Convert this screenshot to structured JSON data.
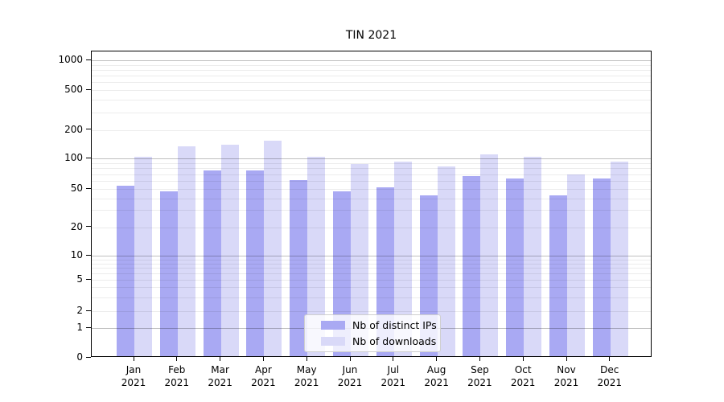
{
  "title": "TIN 2021",
  "chart_data": {
    "type": "bar",
    "title": "TIN 2021",
    "categories": [
      "Jan 2021",
      "Feb 2021",
      "Mar 2021",
      "Apr 2021",
      "May 2021",
      "Jun 2021",
      "Jul 2021",
      "Aug 2021",
      "Sep 2021",
      "Oct 2021",
      "Nov 2021",
      "Dec 2021"
    ],
    "series": [
      {
        "name": "Nb of distinct IPs",
        "color": "#a9a9f3",
        "values": [
          52,
          45,
          74,
          74,
          59,
          45,
          50,
          41,
          64,
          61,
          41,
          61
        ]
      },
      {
        "name": "Nb of downloads",
        "color": "#d9d9f8",
        "values": [
          100,
          128,
          135,
          148,
          101,
          85,
          90,
          80,
          106,
          100,
          67,
          90
        ]
      }
    ],
    "xlabel": "",
    "ylabel": "",
    "y_axis": {
      "scale": "symlog",
      "tick_labels": [
        "0",
        "1",
        "2",
        "5",
        "10",
        "20",
        "50",
        "100",
        "200",
        "500",
        "1000"
      ],
      "major_gridline_values": [
        1,
        10,
        100,
        1000
      ],
      "ylim": [
        0,
        1230
      ],
      "grid": "major and minor horizontal gridlines"
    },
    "legend": {
      "position": "lower center",
      "entries": [
        "Nb of distinct IPs",
        "Nb of downloads"
      ]
    }
  }
}
